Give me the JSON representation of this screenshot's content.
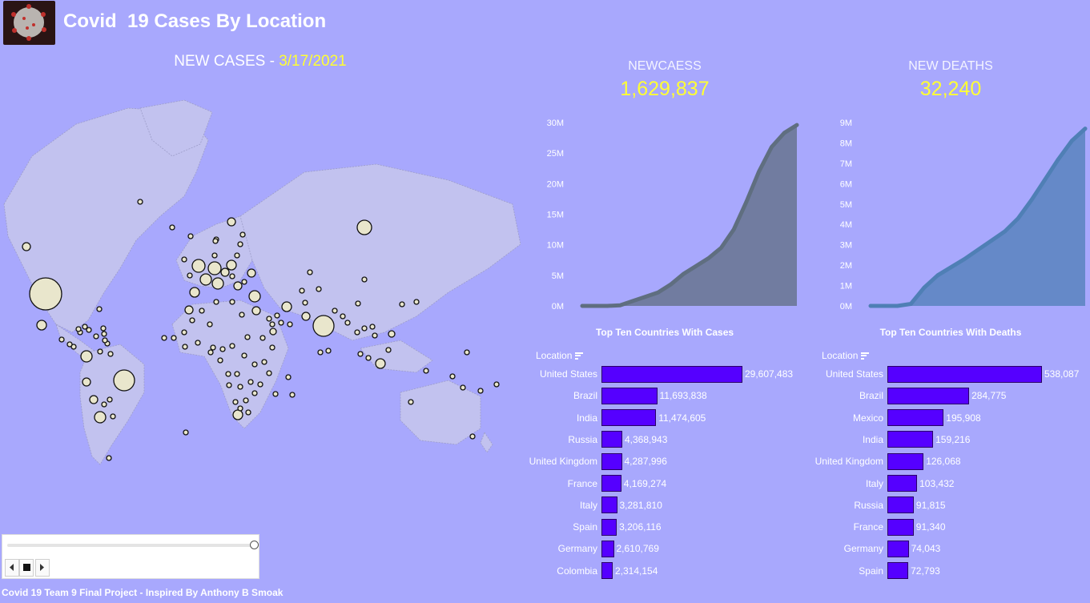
{
  "header": {
    "title": "Covid  19 Cases By Location",
    "logo_icon": "virus-icon"
  },
  "map": {
    "heading_label": "NEW CASES",
    "heading_sep": " - ",
    "heading_date": "3/17/2021"
  },
  "kpis": {
    "cases": {
      "label": "NEWCAESS",
      "value": "1,629,837"
    },
    "deaths": {
      "label": "NEW DEATHS",
      "value": "32,240"
    }
  },
  "colors": {
    "background": "#a8a8fd",
    "bar": "#5500ff",
    "highlight": "#ffff33",
    "cases_area": "#5f6e80",
    "deaths_area": "#4f7fb5"
  },
  "chart_data": [
    {
      "type": "area",
      "y_ticks": [
        "0M",
        "5M",
        "10M",
        "15M",
        "20M",
        "25M",
        "30M"
      ],
      "ylim": [
        0,
        30
      ],
      "y": [
        0,
        0,
        0,
        0.1,
        0.8,
        1.5,
        2.2,
        3.5,
        5.2,
        6.5,
        7.8,
        9.5,
        12.5,
        17,
        22,
        26,
        28.3,
        29.6
      ]
    },
    {
      "type": "area",
      "y_ticks": [
        "0M",
        "1M",
        "2M",
        "3M",
        "4M",
        "5M",
        "6M",
        "7M",
        "8M",
        "9M"
      ],
      "ylim": [
        0,
        9
      ],
      "y": [
        0,
        0,
        0,
        0.1,
        0.9,
        1.5,
        1.9,
        2.3,
        2.75,
        3.2,
        3.65,
        4.3,
        5.2,
        6.2,
        7.2,
        8.1,
        8.7
      ]
    },
    {
      "type": "bar",
      "title": "Top Ten Countries With Cases",
      "axis_header": "Location",
      "categories": [
        "United States",
        "Brazil",
        "India",
        "Russia",
        "United Kingdom",
        "France",
        "Italy",
        "Spain",
        "Germany",
        "Colombia"
      ],
      "values": [
        29607483,
        11693838,
        11474605,
        4368943,
        4287996,
        4169274,
        3281810,
        3206116,
        2610769,
        2314154
      ],
      "labels": [
        "29,607,483",
        "11,693,838",
        "11,474,605",
        "4,368,943",
        "4,287,996",
        "4,169,274",
        "3,281,810",
        "3,206,116",
        "2,610,769",
        "2,314,154"
      ]
    },
    {
      "type": "bar",
      "title": "Top Ten Countries With Deaths",
      "axis_header": "Location",
      "categories": [
        "United States",
        "Brazil",
        "Mexico",
        "India",
        "United Kingdom",
        "Italy",
        "Russia",
        "France",
        "Germany",
        "Spain"
      ],
      "values": [
        538087,
        284775,
        195908,
        159216,
        126068,
        103432,
        91815,
        91340,
        74043,
        72793
      ],
      "labels": [
        "538,087",
        "284,775",
        "195,908",
        "159,216",
        "126,068",
        "103,432",
        "91,815",
        "91,340",
        "74,043",
        "72,793"
      ]
    }
  ],
  "player": {
    "position": 1.0,
    "prev_icon": "chevron-left-icon",
    "stop_icon": "stop-icon",
    "next_icon": "chevron-right-icon"
  },
  "footer": {
    "text": "Covid 19 Team 9 Final Project - Inspired By Anthony B Smoak"
  }
}
